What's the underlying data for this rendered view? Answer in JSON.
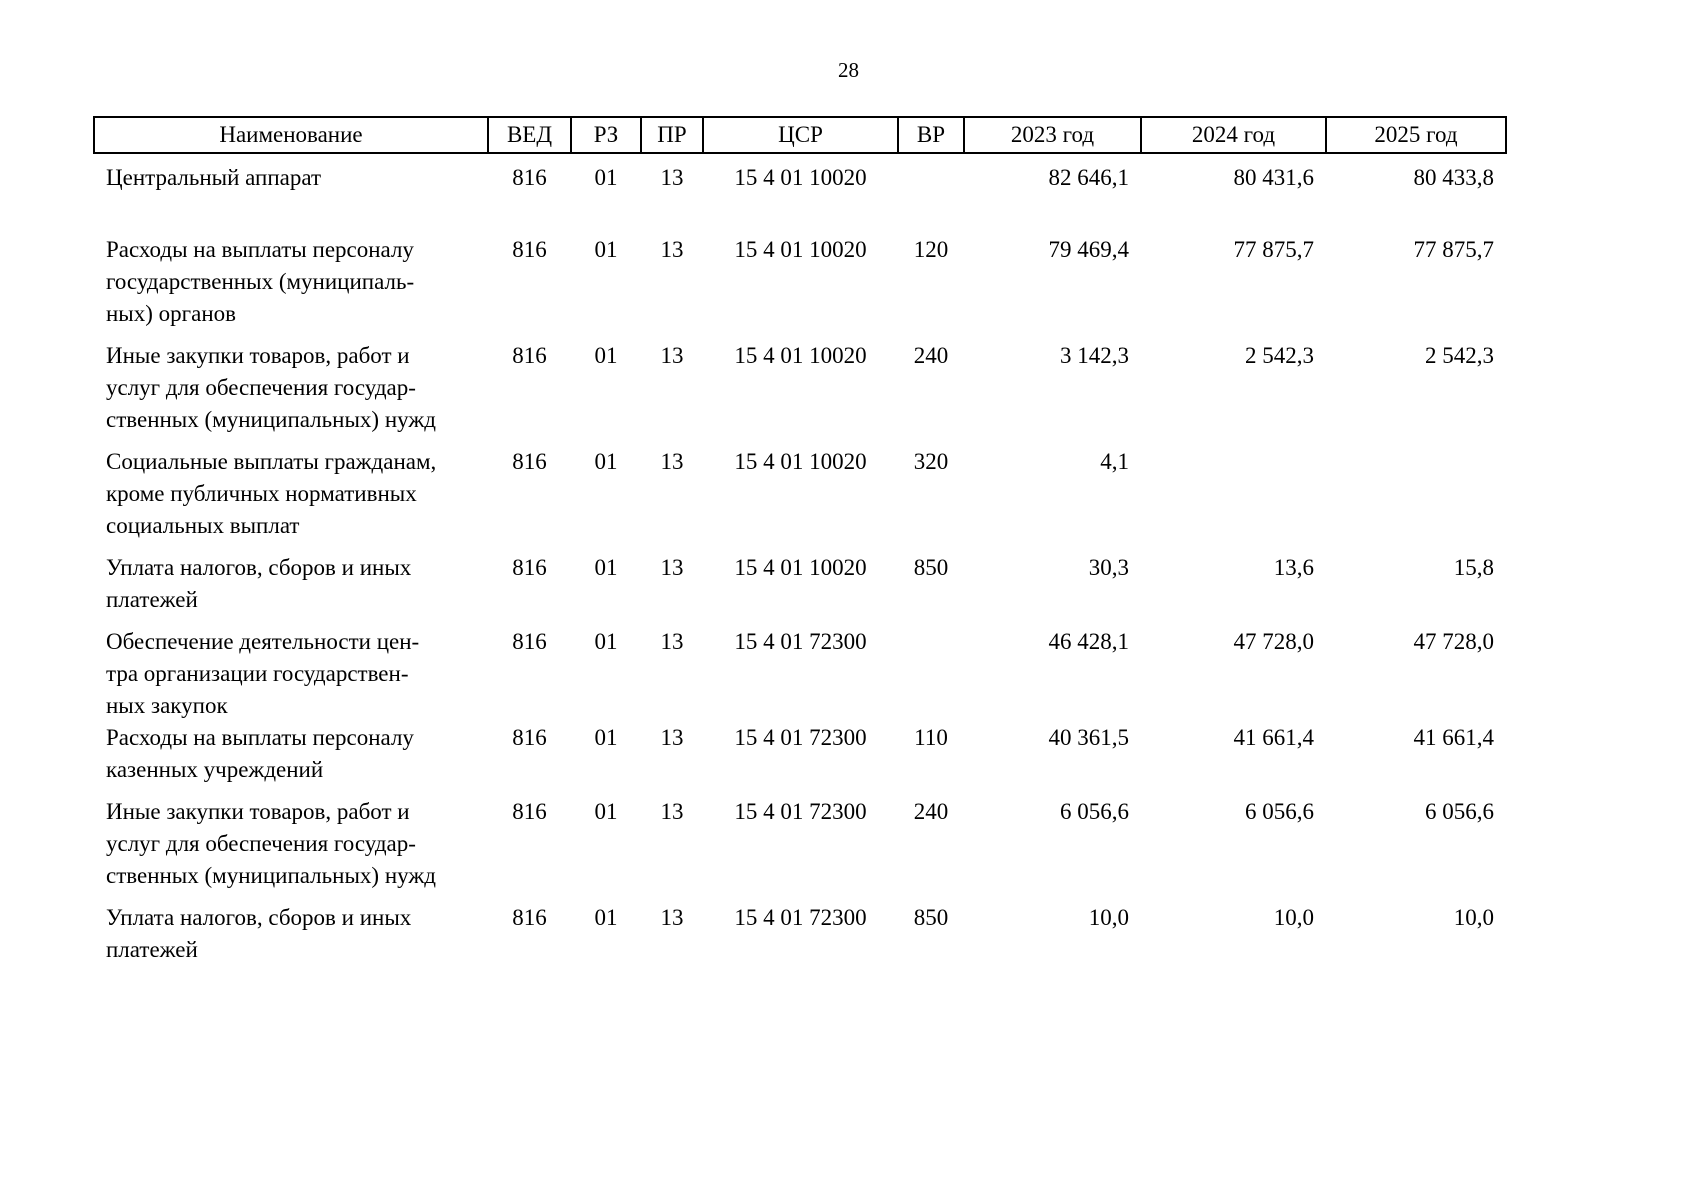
{
  "page": {
    "number": "28"
  },
  "table": {
    "headers": [
      "Наименование",
      "ВЕД",
      "РЗ",
      "ПР",
      "ЦСР",
      "ВР",
      "2023 год",
      "2024 год",
      "2025 год"
    ],
    "rows": [
      {
        "cells": [
          "Центральный аппарат",
          "816",
          "01",
          "13",
          "15 4 01 10020",
          "",
          "82 646,1",
          "80 431,6",
          "80 433,8"
        ]
      },
      {
        "cells": [
          "Расходы на выплаты персоналу\nгосударственных (муниципаль-\nных) органов",
          "816",
          "01",
          "13",
          "15 4 01 10020",
          "120",
          "79 469,4",
          "77 875,7",
          "77 875,7"
        ]
      },
      {
        "cells": [
          "Иные закупки товаров, работ и\nуслуг для обеспечения государ-\nственных (муниципальных) нужд",
          "816",
          "01",
          "13",
          "15 4 01 10020",
          "240",
          "3 142,3",
          "2 542,3",
          "2 542,3"
        ]
      },
      {
        "cells": [
          "Социальные выплаты гражданам,\nкроме публичных нормативных\nсоциальных выплат",
          "816",
          "01",
          "13",
          "15 4 01 10020",
          "320",
          "4,1",
          "",
          ""
        ]
      },
      {
        "cells": [
          "Уплата налогов, сборов и иных\nплатежей",
          "816",
          "01",
          "13",
          "15 4 01 10020",
          "850",
          "30,3",
          "13,6",
          "15,8"
        ]
      },
      {
        "cells": [
          "Обеспечение деятельности цен-\nтра организации государствен-\nных закупок",
          "816",
          "01",
          "13",
          "15 4 01 72300",
          "",
          "46 428,1",
          "47 728,0",
          "47 728,0"
        ]
      },
      {
        "cells": [
          "Расходы на выплаты персоналу\nказенных учреждений",
          "816",
          "01",
          "13",
          "15 4 01 72300",
          "110",
          "40 361,5",
          "41 661,4",
          "41 661,4"
        ]
      },
      {
        "cells": [
          "Иные закупки товаров, работ и\nуслуг для обеспечения государ-\nственных (муниципальных) нужд",
          "816",
          "01",
          "13",
          "15 4 01 72300",
          "240",
          "6 056,6",
          "6 056,6",
          "6 056,6"
        ]
      },
      {
        "cells": [
          "Уплата налогов, сборов и иных\nплатежей",
          "816",
          "01",
          "13",
          "15 4 01 72300",
          "850",
          "10,0",
          "10,0",
          "10,0"
        ]
      }
    ]
  }
}
